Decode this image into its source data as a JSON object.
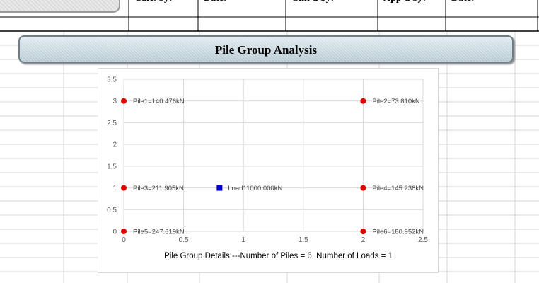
{
  "header_table": {
    "cells": [
      "Calc. by:",
      "Date:",
      "Chk'd by:",
      "App'd by:",
      "Date:"
    ]
  },
  "page_title": "Pile Group Analysis",
  "colors": {
    "pile_marker": "#e00000",
    "load_marker": "#0000cc",
    "gridline": "#d9d9d9",
    "sheet_gridline": "#d4d4d4"
  },
  "chart_data": {
    "type": "scatter",
    "xlim": [
      0,
      2.5
    ],
    "ylim": [
      0,
      3.5
    ],
    "x_ticks": [
      "0",
      "0.5",
      "1",
      "1.5",
      "2",
      "2.5"
    ],
    "y_ticks": [
      "0",
      "0.5",
      "1",
      "1.5",
      "2",
      "2.5",
      "3",
      "3.5"
    ],
    "grid": true,
    "legend": "none",
    "caption": "Pile Group Details:---Number of Piles = 6, Number of Loads = 1",
    "piles": [
      {
        "x": 0,
        "y": 3,
        "label": "Pile1=140.476kN"
      },
      {
        "x": 2,
        "y": 3,
        "label": "Pile2=73.810kN"
      },
      {
        "x": 0,
        "y": 1,
        "label": "Pile3=211.905kN"
      },
      {
        "x": 2,
        "y": 1,
        "label": "Pile4=145.238kN"
      },
      {
        "x": 0,
        "y": 0,
        "label": "Pile5=247.619kN"
      },
      {
        "x": 2,
        "y": 0,
        "label": "Pile6=180.952kN"
      }
    ],
    "loads": [
      {
        "x": 0.8,
        "y": 1,
        "label": "Load11000.000kN"
      }
    ]
  }
}
